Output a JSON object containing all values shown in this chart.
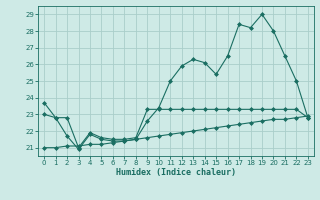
{
  "xlabel": "Humidex (Indice chaleur)",
  "xlim": [
    -0.5,
    23.5
  ],
  "ylim": [
    20.5,
    29.5
  ],
  "yticks": [
    21,
    22,
    23,
    24,
    25,
    26,
    27,
    28,
    29
  ],
  "xticks": [
    0,
    1,
    2,
    3,
    4,
    5,
    6,
    7,
    8,
    9,
    10,
    11,
    12,
    13,
    14,
    15,
    16,
    17,
    18,
    19,
    20,
    21,
    22,
    23
  ],
  "background_color": "#ceeae6",
  "grid_color": "#aaceca",
  "line_color": "#1a6e62",
  "series1_x": [
    0,
    1,
    2,
    3,
    4,
    5,
    6,
    7,
    8,
    9,
    10,
    11,
    12,
    13,
    14,
    15,
    16,
    17,
    18,
    19,
    20,
    21,
    22,
    23
  ],
  "series1_y": [
    23.7,
    22.8,
    21.7,
    20.9,
    21.8,
    21.5,
    21.4,
    21.4,
    21.5,
    22.6,
    23.4,
    25.0,
    25.9,
    26.3,
    26.1,
    25.4,
    26.5,
    28.4,
    28.2,
    29.0,
    28.0,
    26.5,
    25.0,
    22.8
  ],
  "series2_x": [
    0,
    1,
    2,
    3,
    4,
    5,
    6,
    7,
    8,
    9,
    10,
    11,
    12,
    13,
    14,
    15,
    16,
    17,
    18,
    19,
    20,
    21,
    22,
    23
  ],
  "series2_y": [
    23.0,
    22.8,
    22.8,
    21.0,
    21.9,
    21.6,
    21.5,
    21.5,
    21.6,
    23.3,
    23.3,
    23.3,
    23.3,
    23.3,
    23.3,
    23.3,
    23.3,
    23.3,
    23.3,
    23.3,
    23.3,
    23.3,
    23.3,
    22.8
  ],
  "series3_x": [
    0,
    1,
    2,
    3,
    4,
    5,
    6,
    7,
    8,
    9,
    10,
    11,
    12,
    13,
    14,
    15,
    16,
    17,
    18,
    19,
    20,
    21,
    22,
    23
  ],
  "series3_y": [
    21.0,
    21.0,
    21.1,
    21.1,
    21.2,
    21.2,
    21.3,
    21.4,
    21.5,
    21.6,
    21.7,
    21.8,
    21.9,
    22.0,
    22.1,
    22.2,
    22.3,
    22.4,
    22.5,
    22.6,
    22.7,
    22.7,
    22.8,
    22.9
  ]
}
